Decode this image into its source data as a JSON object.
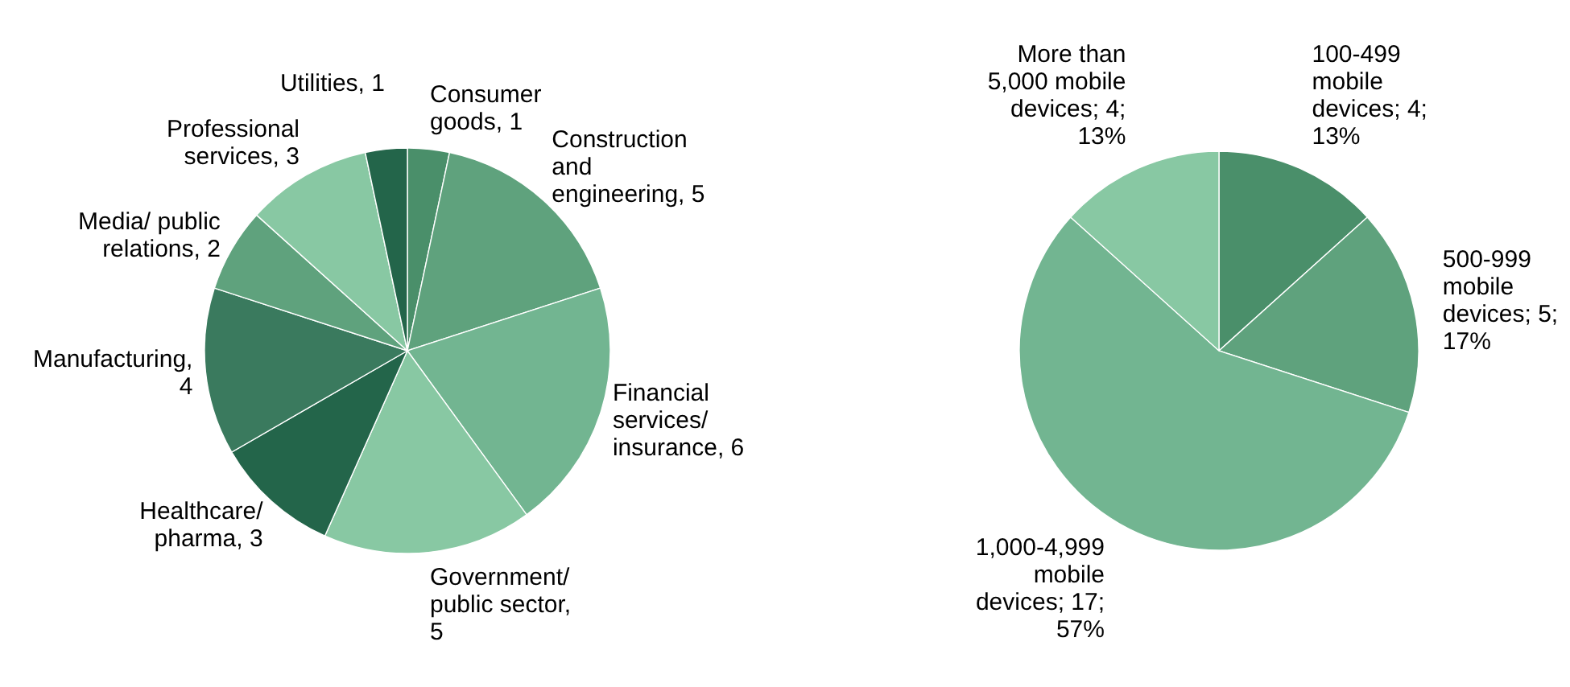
{
  "chart_data": [
    {
      "type": "pie",
      "categories": [
        "Consumer goods, 1",
        "Construction and engineering, 5",
        "Financial services/ insurance, 6",
        "Government/ public sector, 5",
        "Healthcare/ pharma, 3",
        "Manufacturing, 4",
        "Media/ public relations, 2",
        "Professional services, 3",
        "Utilities, 1"
      ],
      "values": [
        1,
        5,
        6,
        5,
        3,
        4,
        2,
        3,
        1
      ],
      "colors": [
        "#4a8f6a",
        "#5fa27d",
        "#72b591",
        "#88c8a3",
        "#23654a",
        "#3a7a5e",
        "#5fa27d",
        "#88c8a3",
        "#23654a"
      ]
    },
    {
      "type": "pie",
      "categories": [
        "100-499 mobile devices",
        "500-999 mobile devices",
        "1,000-4,999 mobile devices",
        "More than 5,000 mobile devices"
      ],
      "values": [
        4,
        5,
        17,
        4
      ],
      "colors": [
        "#4a8f6a",
        "#5fa27d",
        "#72b591",
        "#88c8a3"
      ],
      "value_labels": [
        "4; 13%",
        "5; 17%",
        "17; 57%",
        "4; 13%"
      ]
    }
  ]
}
